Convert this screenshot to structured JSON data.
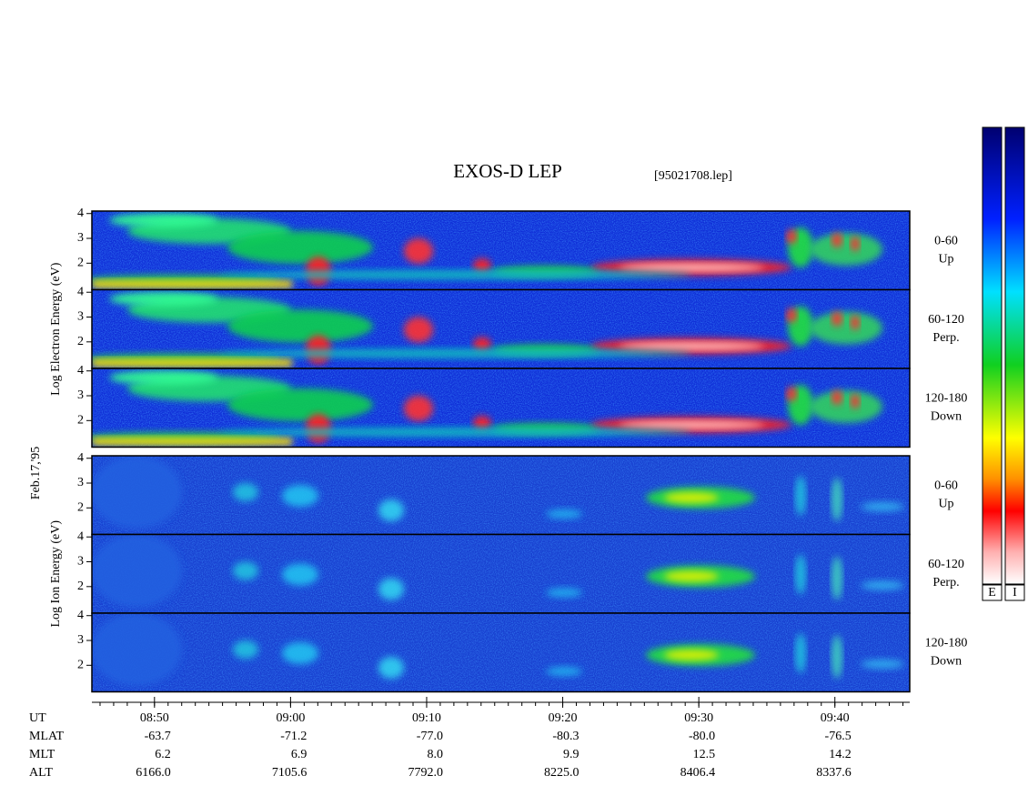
{
  "chart_data": {
    "type": "spectrogram",
    "title": "EXOS-D LEP",
    "file": "[95021708.lep]",
    "date": "Feb.17,'95",
    "groups": [
      {
        "ylabel": "Log  Electron  Energy  (eV)",
        "panels": [
          {
            "label1": "0-60",
            "label2": "Up"
          },
          {
            "label1": "60-120",
            "label2": "Perp."
          },
          {
            "label1": "120-180",
            "label2": "Down"
          }
        ]
      },
      {
        "ylabel": "Log  Ion  Energy  (eV)",
        "panels": [
          {
            "label1": "0-60",
            "label2": "Up"
          },
          {
            "label1": "60-120",
            "label2": "Perp."
          },
          {
            "label1": "120-180",
            "label2": "Down"
          }
        ]
      }
    ],
    "ylim": [
      0.93,
      4.1
    ],
    "yticks": [
      2,
      3,
      4
    ],
    "xlim": [
      525.4,
      585.5
    ],
    "xticks": [
      {
        "value": 530,
        "label": "08:50"
      },
      {
        "value": 540,
        "label": "09:00"
      },
      {
        "value": 550,
        "label": "09:10"
      },
      {
        "value": 560,
        "label": "09:20"
      },
      {
        "value": 570,
        "label": "09:30"
      },
      {
        "value": 580,
        "label": "09:40"
      }
    ],
    "ephemeris": [
      {
        "name": "UT"
      },
      {
        "name": "MLAT",
        "values": [
          "-63.7",
          "-71.2",
          "-77.0",
          "-80.3",
          "-80.0",
          "-76.5"
        ]
      },
      {
        "name": "MLT",
        "values": [
          "6.2",
          "6.9",
          "8.0",
          "9.9",
          "12.5",
          "14.2"
        ]
      },
      {
        "name": "ALT",
        "values": [
          "6166.0",
          "7105.6",
          "7792.0",
          "8225.0",
          "8406.4",
          "8337.6"
        ]
      }
    ],
    "colorbars": [
      "E",
      "I"
    ]
  }
}
